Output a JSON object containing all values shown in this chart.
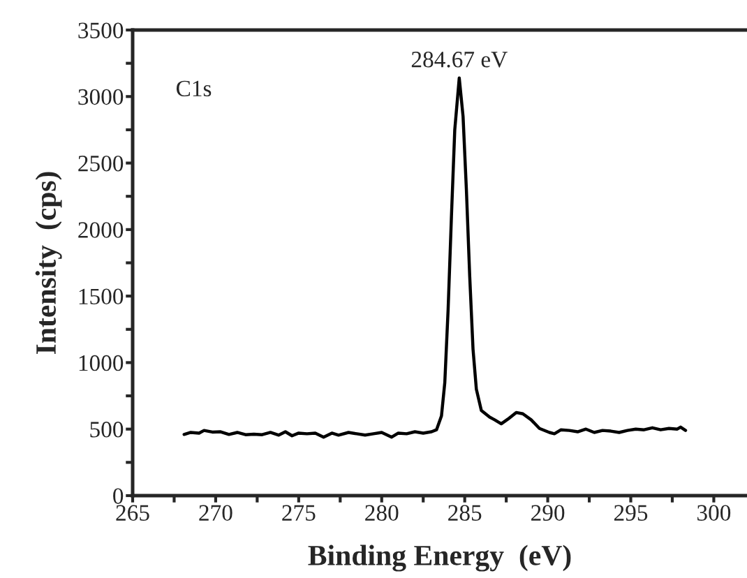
{
  "chart_data": {
    "type": "line",
    "xlabel": "Binding Energy  (eV)",
    "ylabel": "Intensity  (cps)",
    "xlim": [
      265,
      302
    ],
    "ylim": [
      0,
      3500
    ],
    "xticks": [
      265,
      {
        "value": 267.5,
        "label": null
      },
      270,
      {
        "value": 272.5,
        "label": null
      },
      275,
      {
        "value": 277.5,
        "label": null
      },
      280,
      {
        "value": 282.5,
        "label": null
      },
      285,
      {
        "value": 287.5,
        "label": null
      },
      290,
      {
        "value": 292.5,
        "label": null
      },
      295,
      {
        "value": 297.5,
        "label": null
      },
      300
    ],
    "yticks": [
      0,
      {
        "value": 250,
        "label": null
      },
      500,
      {
        "value": 750,
        "label": null
      },
      1000,
      {
        "value": 1250,
        "label": null
      },
      1500,
      {
        "value": 1750,
        "label": null
      },
      2000,
      {
        "value": 2250,
        "label": null
      },
      2500,
      {
        "value": 2750,
        "label": null
      },
      3000,
      {
        "value": 3250,
        "label": null
      },
      3500
    ],
    "grid": false,
    "legend": false,
    "marker": "none",
    "line_style": "solid",
    "annotations": [
      "C1s",
      {
        "text": "284.67 eV",
        "x": 284.67,
        "y": 3140
      }
    ],
    "series": [
      {
        "color": "#000000",
        "x": [
          268.1,
          268.5,
          269,
          269.3,
          269.8,
          270.3,
          270.8,
          271.3,
          271.8,
          272.3,
          272.8,
          273.3,
          273.8,
          274.2,
          274.6,
          275,
          275.5,
          276,
          276.5,
          277,
          277.4,
          278,
          278.5,
          279,
          279.5,
          280,
          280.6,
          281,
          281.5,
          282,
          282.5,
          283,
          283.3,
          283.6,
          283.8,
          284.0,
          284.2,
          284.4,
          284.67,
          284.9,
          285.1,
          285.3,
          285.5,
          285.7,
          286.0,
          286.5,
          286.8,
          287.2,
          287.6,
          288.1,
          288.5,
          289,
          289.5,
          290.1,
          290.4,
          290.8,
          291.3,
          291.8,
          292.3,
          292.8,
          293.3,
          293.8,
          294.3,
          294.8,
          295.3,
          295.8,
          296.3,
          296.8,
          297.3,
          297.8,
          298.0,
          298.3
        ],
        "values": [
          460,
          475,
          470,
          490,
          478,
          480,
          460,
          475,
          458,
          462,
          458,
          475,
          455,
          480,
          450,
          470,
          465,
          470,
          440,
          470,
          455,
          475,
          465,
          455,
          465,
          475,
          440,
          470,
          465,
          480,
          470,
          480,
          495,
          600,
          850,
          1400,
          2100,
          2750,
          3140,
          2850,
          2300,
          1650,
          1100,
          800,
          640,
          590,
          570,
          540,
          575,
          625,
          615,
          570,
          505,
          475,
          465,
          495,
          490,
          480,
          500,
          475,
          490,
          485,
          475,
          490,
          500,
          495,
          510,
          495,
          505,
          500,
          515,
          490
        ]
      }
    ]
  }
}
